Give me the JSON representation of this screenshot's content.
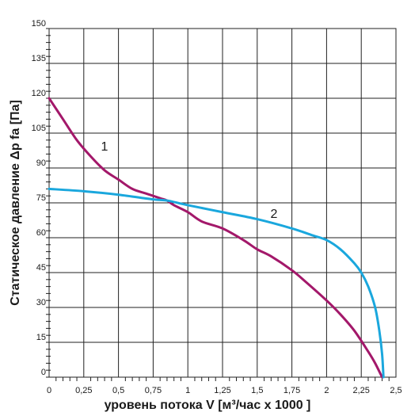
{
  "chart_data": {
    "type": "line",
    "xlabel": "уровень потока  V [м³/час x 1000 ]",
    "ylabel": "Статическое давление  Δp fa [Па]",
    "xlim": [
      0,
      2.5
    ],
    "ylim": [
      0,
      150
    ],
    "x_ticks": [
      "0",
      "0,25",
      "0,5",
      "0,75",
      "1",
      "1,25",
      "1,5",
      "1,75",
      "2",
      "2,25",
      "2,5"
    ],
    "y_ticks": [
      "0",
      "15",
      "30",
      "45",
      "60",
      "75",
      "90",
      "105",
      "120",
      "135",
      "150"
    ],
    "grid": true,
    "series": [
      {
        "name": "1",
        "color": "#a3186a",
        "x": [
          0,
          0.1,
          0.2,
          0.3,
          0.4,
          0.5,
          0.6,
          0.7,
          0.8,
          0.85,
          0.9,
          1.0,
          1.1,
          1.25,
          1.4,
          1.5,
          1.6,
          1.75,
          1.85,
          2.0,
          2.1,
          2.2,
          2.3,
          2.35,
          2.4
        ],
        "y": [
          120,
          111,
          102,
          95,
          89,
          85,
          81,
          79,
          77,
          76,
          74,
          71,
          67,
          64,
          59,
          55,
          52,
          46,
          41,
          33,
          27,
          20,
          11,
          6,
          0
        ]
      },
      {
        "name": "2",
        "color": "#1aa7dd",
        "x": [
          0,
          0.25,
          0.5,
          0.75,
          0.85,
          1.0,
          1.25,
          1.5,
          1.75,
          1.9,
          2.0,
          2.1,
          2.2,
          2.25,
          2.3,
          2.35,
          2.38,
          2.4,
          2.41
        ],
        "y": [
          81,
          80,
          78.5,
          76.5,
          76,
          74,
          71,
          68,
          64,
          61,
          59,
          55,
          49,
          45,
          39,
          30,
          20,
          10,
          0
        ]
      }
    ]
  }
}
